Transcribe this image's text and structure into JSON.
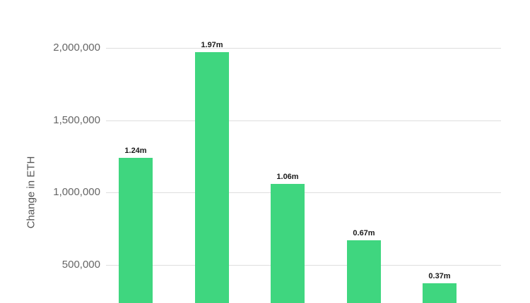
{
  "chart_data": {
    "type": "bar",
    "title": "",
    "xlabel": "",
    "ylabel": "Change in ETH",
    "categories": [],
    "values": [
      1240000,
      1970000,
      1060000,
      670000,
      370000
    ],
    "data_labels": [
      "1.24m",
      "1.97m",
      "1.06m",
      "0.67m",
      "0.37m"
    ],
    "yticks": [
      {
        "value": 2000000,
        "label": "2,000,000"
      },
      {
        "value": 1500000,
        "label": "1,500,000"
      },
      {
        "value": 1000000,
        "label": "1,000,000"
      },
      {
        "value": 500000,
        "label": "500,000"
      }
    ],
    "ylim_visible": [
      230000,
      2330000
    ],
    "baseline_cropped": true,
    "grid": true,
    "legend": "none",
    "colors": {
      "bar": "#3fd67f",
      "gridline": "#dedede",
      "tick_label": "#666666",
      "data_label": "#1a1a1a",
      "axis_title": "#555555",
      "background": "#ffffff"
    }
  }
}
